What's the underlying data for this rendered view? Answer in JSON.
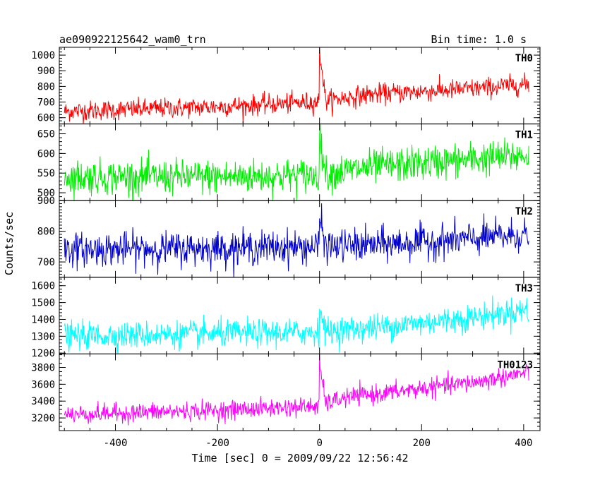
{
  "header": {
    "title": "ae090922125642_wam0_trn",
    "bin_time": "Bin time: 1.0 s"
  },
  "chart_data": {
    "type": "line",
    "title": "ae090922125642_wam0_trn",
    "xlabel": "Time [sec] 0 = 2009/09/22 12:56:42",
    "ylabel": "Counts/sec",
    "xlim": [
      -510,
      432
    ],
    "x_ticks": [
      -400,
      -200,
      0,
      200,
      400
    ],
    "x_range": [
      -500,
      410
    ],
    "grid": false,
    "panels": [
      {
        "name": "TH0",
        "color": "#ff0000",
        "ylim": [
          560,
          1050
        ],
        "y_ticks": [
          600,
          700,
          800,
          900,
          1000
        ],
        "baseline": [
          [
            -500,
            640
          ],
          [
            -200,
            670
          ],
          [
            -5,
            700
          ],
          [
            100,
            750
          ],
          [
            300,
            785
          ],
          [
            410,
            815
          ]
        ],
        "noise": 32,
        "peak": 1040
      },
      {
        "name": "TH1",
        "color": "#00ee00",
        "ylim": [
          480,
          675
        ],
        "y_ticks": [
          500,
          550,
          600,
          650
        ],
        "baseline": [
          [
            -500,
            540
          ],
          [
            -200,
            540
          ],
          [
            0,
            545
          ],
          [
            100,
            565
          ],
          [
            300,
            585
          ],
          [
            410,
            595
          ]
        ],
        "noise": 22,
        "peak": 655
      },
      {
        "name": "TH2",
        "color": "#0000cc",
        "ylim": [
          650,
          900
        ],
        "y_ticks": [
          700,
          800,
          900
        ],
        "baseline": [
          [
            -500,
            740
          ],
          [
            -200,
            745
          ],
          [
            0,
            750
          ],
          [
            100,
            755
          ],
          [
            300,
            775
          ],
          [
            410,
            790
          ]
        ],
        "noise": 27,
        "peak": 850
      },
      {
        "name": "TH3",
        "color": "#00ffff",
        "ylim": [
          1195,
          1650
        ],
        "y_ticks": [
          1200,
          1300,
          1400,
          1500,
          1600
        ],
        "baseline": [
          [
            -500,
            1300
          ],
          [
            -200,
            1315
          ],
          [
            0,
            1325
          ],
          [
            100,
            1350
          ],
          [
            300,
            1410
          ],
          [
            410,
            1460
          ]
        ],
        "noise": 40,
        "peak": 1470
      },
      {
        "name": "TH0123",
        "color": "#ff00ff",
        "ylim": [
          3050,
          3960
        ],
        "y_ticks": [
          3200,
          3400,
          3600,
          3800
        ],
        "baseline": [
          [
            -500,
            3240
          ],
          [
            -200,
            3290
          ],
          [
            -5,
            3340
          ],
          [
            50,
            3440
          ],
          [
            300,
            3620
          ],
          [
            410,
            3740
          ]
        ],
        "noise": 55,
        "peak": 3850
      }
    ]
  }
}
